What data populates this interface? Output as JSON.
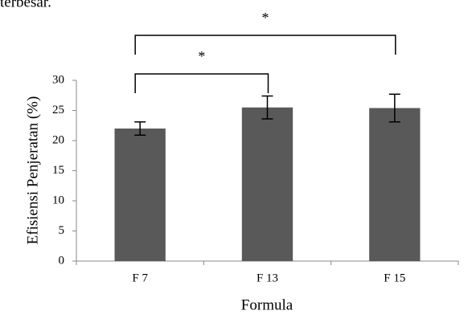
{
  "text_above": "terbesar.",
  "chart_data": {
    "type": "bar",
    "y_label": "Efisiensi Penjeratan (%)",
    "x_label": "Formula",
    "categories": [
      "F 7",
      "F 13",
      "F 15"
    ],
    "values": [
      22,
      25.5,
      25.4
    ],
    "errors": [
      1.1,
      1.9,
      2.3
    ],
    "color": "#595959",
    "ylim": [
      0,
      30
    ],
    "yticks": [
      0,
      5,
      10,
      15,
      20,
      25,
      30
    ],
    "grid": false,
    "significance": [
      {
        "pair": [
          "F 7",
          "F 15"
        ],
        "label": "*"
      },
      {
        "pair": [
          "F 7",
          "F 13"
        ],
        "label": "*"
      }
    ]
  }
}
